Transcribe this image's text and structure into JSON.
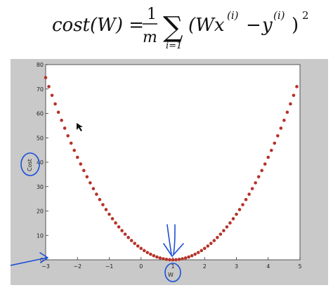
{
  "formula": {
    "lhs": "cost(W) =",
    "frac_num": "1",
    "frac_den": "m",
    "sum_symbol": "∑",
    "sum_lower": "i=1",
    "body": "(Wx",
    "sup_i": "(i)",
    "minus": "−",
    "y": "y",
    "sup_i2": "(i)",
    "close": ")",
    "power": "2"
  },
  "chart_data": {
    "type": "scatter",
    "xlabel": "W",
    "ylabel": "Cost",
    "xlim": [
      -3,
      5
    ],
    "ylim": [
      0,
      80
    ],
    "xticks": [
      -3,
      -2,
      -1,
      0,
      1,
      2,
      3,
      4,
      5
    ],
    "yticks": [
      0,
      10,
      20,
      30,
      40,
      50,
      60,
      70,
      80
    ],
    "xtick_labels": [
      "−3",
      "−2",
      "−1",
      "0",
      "1",
      "2",
      "3",
      "4",
      "5"
    ],
    "ytick_labels": [
      "0",
      "10",
      "20",
      "30",
      "40",
      "50",
      "60",
      "70",
      "80"
    ],
    "series": [
      {
        "function": "4.667 * (W - 1)^2",
        "x_start": -3.0,
        "x_end": 4.9,
        "x_step": 0.1,
        "marker": "circle",
        "color": "#b5332a"
      }
    ],
    "background_color": "#c9c9c9",
    "plot_area_color": "#ffffff",
    "annotation_color": "#1d4fd8"
  }
}
